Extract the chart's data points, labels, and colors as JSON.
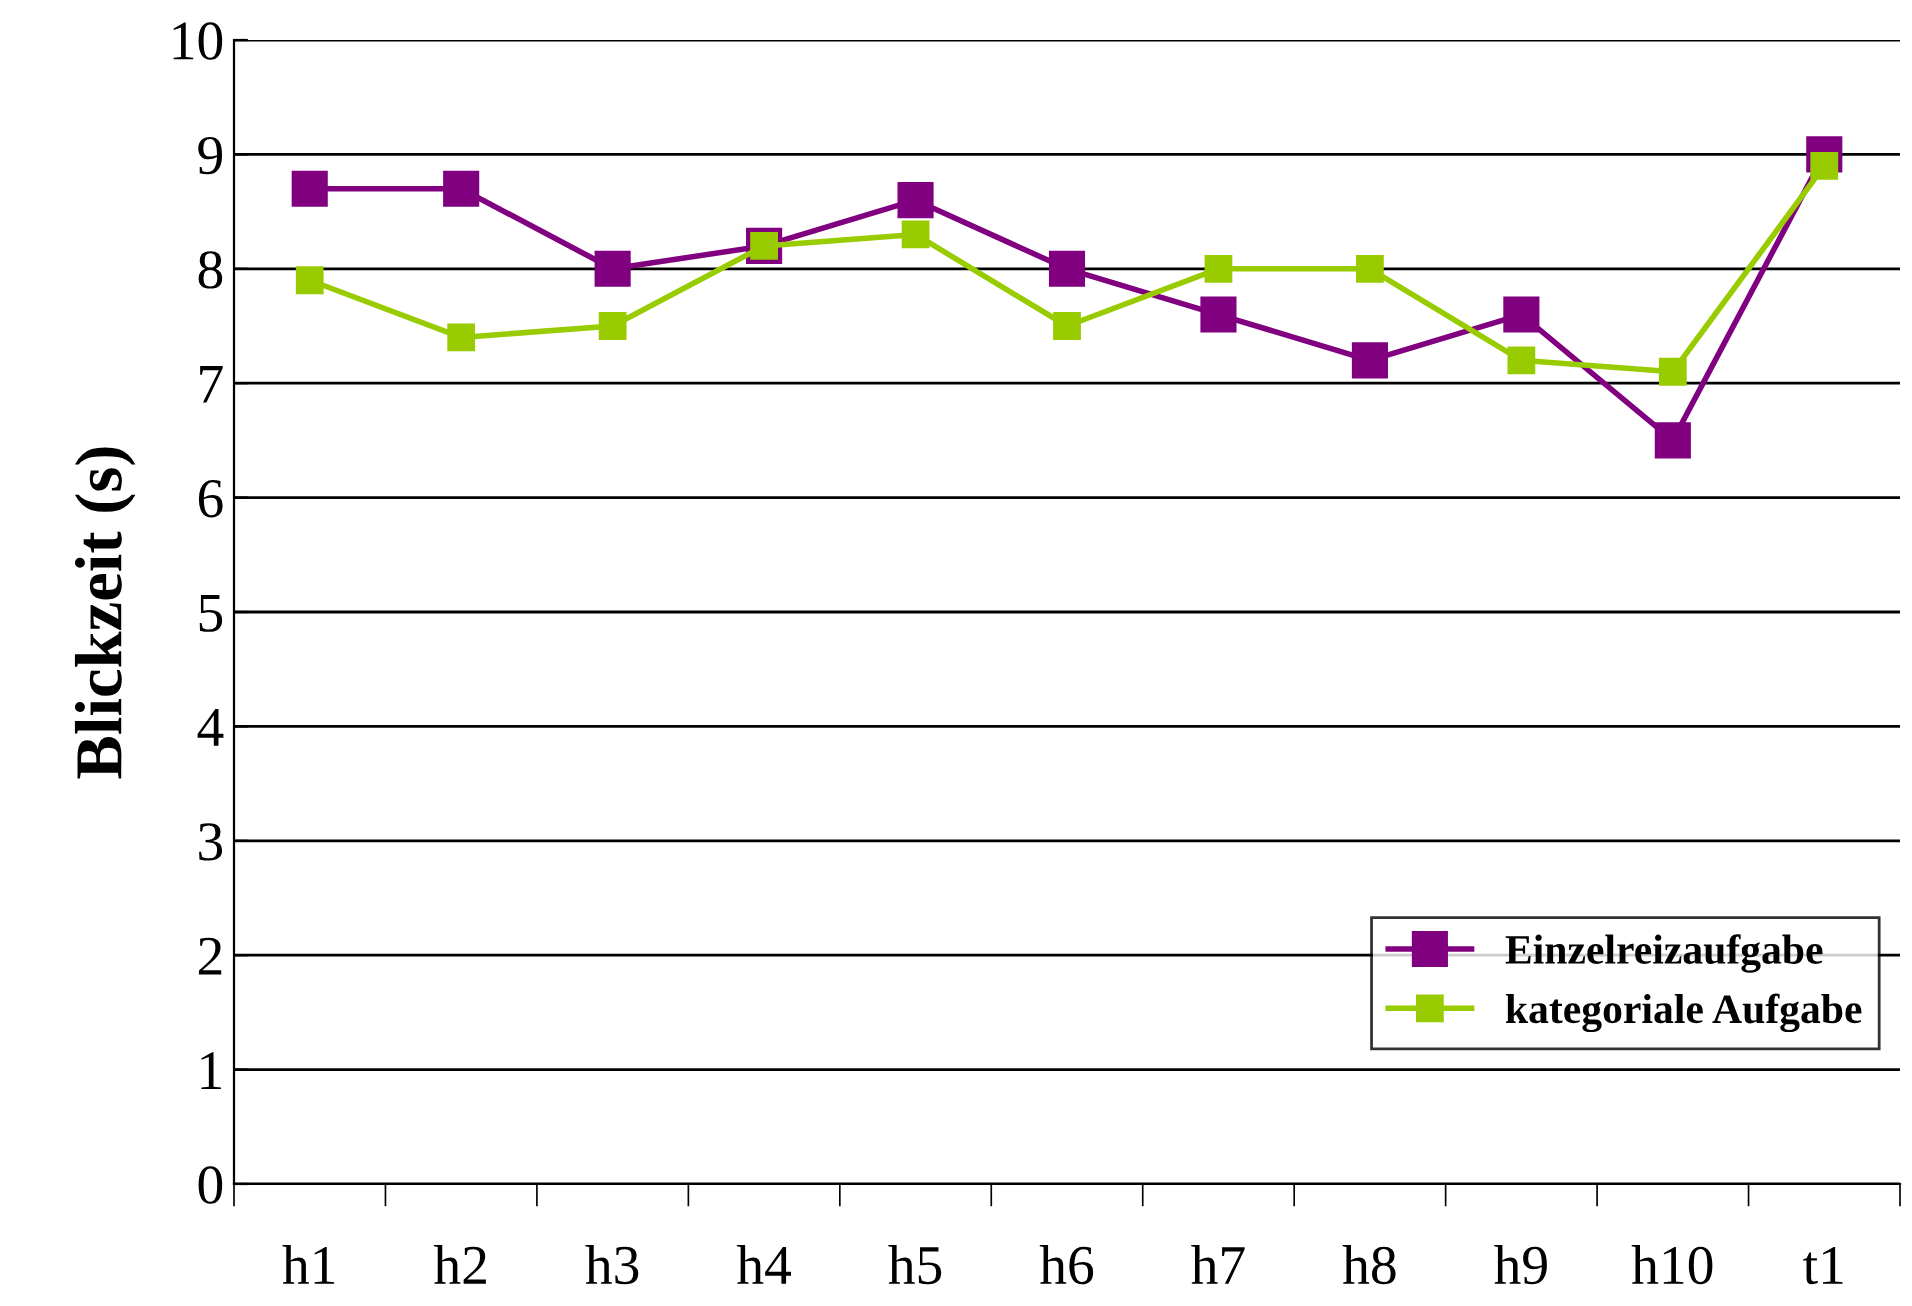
{
  "chart_data": {
    "type": "line",
    "ylabel": "Blickzeit (s)",
    "categories": [
      "h1",
      "h2",
      "h3",
      "h4",
      "h5",
      "h6",
      "h7",
      "h8",
      "h9",
      "h10",
      "t1"
    ],
    "series": [
      {
        "name": "Einzelreizaufgabe",
        "color": "#800080",
        "values": [
          8.7,
          8.7,
          8.0,
          8.2,
          8.6,
          8.0,
          7.6,
          7.2,
          7.6,
          6.5,
          9.0
        ]
      },
      {
        "name": "kategoriale Aufgabe",
        "color": "#99cc00",
        "values": [
          7.9,
          7.4,
          7.5,
          8.2,
          8.3,
          7.5,
          8.0,
          8.0,
          7.2,
          7.1,
          8.9
        ]
      }
    ],
    "ylim": [
      0,
      10
    ],
    "yticks": [
      0,
      1,
      2,
      3,
      4,
      5,
      6,
      7,
      8,
      9,
      10
    ],
    "grid": "y",
    "legend": "bottom right",
    "marker": "square",
    "line_style": "solid"
  }
}
